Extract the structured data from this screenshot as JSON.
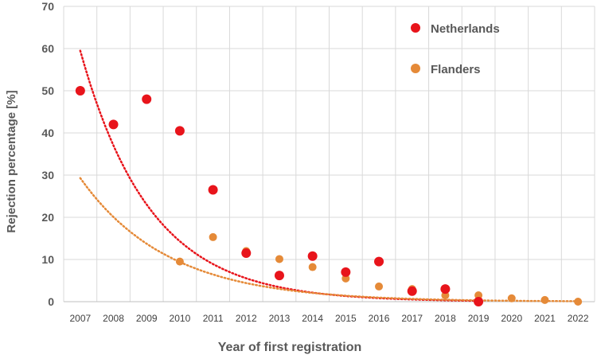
{
  "chart_data": {
    "type": "scatter",
    "xlabel": "Year of first registration",
    "ylabel": "Rejection percentage [%]",
    "categories": [
      "2007",
      "2008",
      "2009",
      "2010",
      "2011",
      "2012",
      "2013",
      "2014",
      "2015",
      "2016",
      "2017",
      "2018",
      "2019",
      "2020",
      "2021",
      "2022"
    ],
    "ylim": [
      0,
      70
    ],
    "yticks": [
      0,
      10,
      20,
      30,
      40,
      50,
      60,
      70
    ],
    "grid": "vertical and horizontal",
    "legend_position": "top-right",
    "series": [
      {
        "name": "Netherlands",
        "color": "#e8141b",
        "points": [
          {
            "x": 2007,
            "y": 50
          },
          {
            "x": 2008,
            "y": 42
          },
          {
            "x": 2009,
            "y": 48
          },
          {
            "x": 2010,
            "y": 40.5
          },
          {
            "x": 2011,
            "y": 26.5
          },
          {
            "x": 2012,
            "y": 11.5
          },
          {
            "x": 2013,
            "y": 6.2
          },
          {
            "x": 2014,
            "y": 10.8
          },
          {
            "x": 2015,
            "y": 7
          },
          {
            "x": 2016,
            "y": 9.5
          },
          {
            "x": 2017,
            "y": 2.5
          },
          {
            "x": 2018,
            "y": 3
          },
          {
            "x": 2019,
            "y": 0
          }
        ],
        "trendline": {
          "type": "exponential",
          "x_start": 2007,
          "x_end": 2019,
          "y_start": 59.5,
          "y_end": 0.2
        }
      },
      {
        "name": "Flanders",
        "color": "#e58a38",
        "points": [
          {
            "x": 2010,
            "y": 9.5
          },
          {
            "x": 2011,
            "y": 15.3
          },
          {
            "x": 2012,
            "y": 12
          },
          {
            "x": 2013,
            "y": 10.1
          },
          {
            "x": 2014,
            "y": 8.2
          },
          {
            "x": 2015,
            "y": 5.5
          },
          {
            "x": 2016,
            "y": 3.6
          },
          {
            "x": 2017,
            "y": 3
          },
          {
            "x": 2018,
            "y": 1.5
          },
          {
            "x": 2019,
            "y": 1.5
          },
          {
            "x": 2020,
            "y": 0.8
          },
          {
            "x": 2021,
            "y": 0.4
          },
          {
            "x": 2022,
            "y": 0
          }
        ],
        "trendline": {
          "type": "exponential",
          "x_start": 2007,
          "x_end": 2022,
          "y_start": 29.3,
          "y_end": 0.1
        }
      }
    ]
  }
}
